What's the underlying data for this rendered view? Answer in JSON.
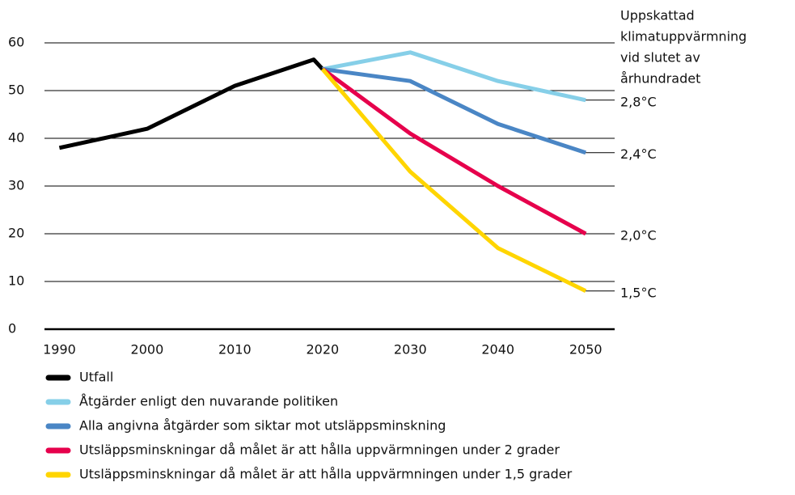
{
  "chart_data": {
    "type": "line",
    "xlim": [
      1988.3,
      2053.3
    ],
    "xticks": [
      1990,
      2000,
      2010,
      2020,
      2030,
      2040,
      2050
    ],
    "ylim": [
      0,
      60
    ],
    "yticks": [
      0,
      10,
      20,
      30,
      40,
      50,
      60
    ],
    "grid": true,
    "right_header": [
      "Uppskattad",
      "klimatuppvärmning",
      "vid slutet av",
      "århundradet"
    ],
    "series": [
      {
        "name": "Utfall",
        "color": "#000000",
        "x": [
          1990,
          2000,
          2010,
          2019,
          2020
        ],
        "values": [
          38,
          42,
          51,
          56.5,
          54.5
        ]
      },
      {
        "name": "Åtgärder enligt den nuvarande politiken",
        "color": "#86cfe8",
        "x": [
          2020,
          2030,
          2040,
          2050
        ],
        "values": [
          54.5,
          58,
          52,
          48
        ],
        "end_label": "2,8°C"
      },
      {
        "name": "Alla angivna åtgärder som siktar mot utsläppsminskning",
        "color": "#4a86c5",
        "x": [
          2020,
          2030,
          2040,
          2050
        ],
        "values": [
          54.5,
          52,
          43,
          37
        ],
        "end_label": "2,4°C"
      },
      {
        "name": "Utsläppsminskningar då målet är att hålla uppvärmningen under 2 grader",
        "color": "#e6004c",
        "x": [
          2020,
          2030,
          2040,
          2050
        ],
        "values": [
          54.5,
          41,
          30,
          20
        ],
        "end_label": "2,0°C"
      },
      {
        "name": "Utsläppsminskningar då målet är att hålla uppvärmningen under 1,5 grader",
        "color": "#ffd500",
        "x": [
          2020,
          2030,
          2040,
          2050
        ],
        "values": [
          54.5,
          33,
          17,
          8
        ],
        "end_label": "1,5°C"
      }
    ]
  }
}
